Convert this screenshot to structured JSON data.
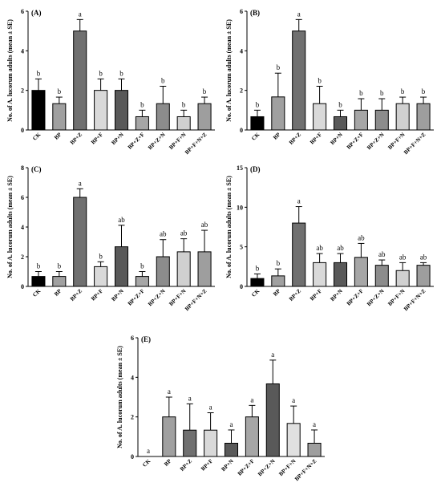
{
  "chart_data": [
    {
      "type": "bar",
      "panel_label": "(A)",
      "ylabel": "No. of A. lucorum adults (mean ± SE)",
      "ylim": [
        0,
        6
      ],
      "yticks": [
        0,
        2,
        4,
        6
      ],
      "categories": [
        "CK",
        "BP",
        "BP+Z",
        "BP+F",
        "BP+N",
        "BP+Z+F",
        "BP+Z+N",
        "BP+F+N",
        "BP+F+N+Z"
      ],
      "values": [
        2.0,
        1.33,
        5.0,
        2.0,
        2.0,
        0.67,
        1.33,
        0.67,
        1.33
      ],
      "errors": [
        0.58,
        0.33,
        0.58,
        0.58,
        0.58,
        0.33,
        0.88,
        0.33,
        0.33
      ],
      "letters": [
        "b",
        "b",
        "a",
        "b",
        "b",
        "b",
        "b",
        "b",
        "b"
      ],
      "colors": [
        "#000000",
        "#a0a0a0",
        "#707070",
        "#d9d9d9",
        "#595959",
        "#a6a6a6",
        "#8c8c8c",
        "#d0d0d0",
        "#9e9e9e"
      ]
    },
    {
      "type": "bar",
      "panel_label": "(B)",
      "ylabel": "No. of A. lucorum adults (mean ± SE)",
      "ylim": [
        0,
        6
      ],
      "yticks": [
        0,
        2,
        4,
        6
      ],
      "categories": [
        "CK",
        "BP",
        "BP+Z",
        "BP+F",
        "BP+N",
        "BP+Z+F",
        "BP+Z+N",
        "BP+F+N",
        "BP+F+N+Z"
      ],
      "values": [
        0.67,
        1.67,
        5.0,
        1.33,
        0.67,
        1.0,
        1.0,
        1.33,
        1.33
      ],
      "errors": [
        0.33,
        1.2,
        0.58,
        0.88,
        0.33,
        0.58,
        0.58,
        0.33,
        0.33
      ],
      "letters": [
        "b",
        "b",
        "a",
        "b",
        "b",
        "b",
        "b",
        "b",
        "b"
      ],
      "colors": [
        "#000000",
        "#a0a0a0",
        "#707070",
        "#d9d9d9",
        "#595959",
        "#a6a6a6",
        "#8c8c8c",
        "#d0d0d0",
        "#9e9e9e"
      ]
    },
    {
      "type": "bar",
      "panel_label": "(C)",
      "ylabel": "No. of A. lucorum adults (mean ± SE)",
      "ylim": [
        0,
        8
      ],
      "yticks": [
        0,
        2,
        4,
        6,
        8
      ],
      "categories": [
        "CK",
        "BP",
        "BP+Z",
        "BP+F",
        "BP+N",
        "BP+Z+F",
        "BP+Z+N",
        "BP+F+N",
        "BP+F+N+Z"
      ],
      "values": [
        0.67,
        0.67,
        6.0,
        1.33,
        2.67,
        0.67,
        2.0,
        2.33,
        2.33
      ],
      "errors": [
        0.33,
        0.33,
        0.58,
        0.33,
        1.45,
        0.33,
        1.15,
        0.88,
        1.45
      ],
      "letters": [
        "b",
        "b",
        "a",
        "b",
        "ab",
        "b",
        "ab",
        "ab",
        "ab"
      ],
      "colors": [
        "#000000",
        "#a0a0a0",
        "#707070",
        "#d9d9d9",
        "#595959",
        "#a6a6a6",
        "#8c8c8c",
        "#d0d0d0",
        "#9e9e9e"
      ]
    },
    {
      "type": "bar",
      "panel_label": "(D)",
      "ylabel": "No. of A. lucorum adults (mean ± SE)",
      "ylim": [
        0,
        15
      ],
      "yticks": [
        0,
        5,
        10,
        15
      ],
      "categories": [
        "CK",
        "BP",
        "BP+Z",
        "BP+F",
        "BP+N",
        "BP+Z+F",
        "BP+Z+N",
        "BP+F+N",
        "BP+F+N+Z"
      ],
      "values": [
        1.0,
        1.33,
        8.0,
        3.0,
        3.0,
        3.67,
        2.67,
        2.0,
        2.67
      ],
      "errors": [
        0.58,
        0.88,
        2.08,
        1.15,
        1.15,
        1.76,
        0.67,
        1.0,
        0.33
      ],
      "letters": [
        "b",
        "b",
        "a",
        "ab",
        "ab",
        "ab",
        "ab",
        "ab",
        "ab"
      ],
      "colors": [
        "#000000",
        "#a0a0a0",
        "#707070",
        "#d9d9d9",
        "#595959",
        "#a6a6a6",
        "#8c8c8c",
        "#d0d0d0",
        "#9e9e9e"
      ]
    },
    {
      "type": "bar",
      "panel_label": "(E)",
      "ylabel": "No. of A. lucorum adults (mean ± SE)",
      "ylim": [
        0,
        6
      ],
      "yticks": [
        0,
        2,
        4,
        6
      ],
      "categories": [
        "CK",
        "BP",
        "BP+Z",
        "BP+F",
        "BP+N",
        "BP+Z+F",
        "BP+Z+N",
        "BP+F+N",
        "BP+F+N+Z"
      ],
      "values": [
        0,
        2.0,
        1.33,
        1.33,
        0.67,
        2.0,
        3.67,
        1.67,
        0.67
      ],
      "errors": [
        0,
        1.0,
        1.33,
        0.88,
        0.67,
        0.58,
        1.2,
        0.88,
        0.67
      ],
      "letters": [
        "a",
        "a",
        "a",
        "a",
        "a",
        "a",
        "a",
        "a",
        "a"
      ],
      "colors": [
        "#000000",
        "#a0a0a0",
        "#707070",
        "#d9d9d9",
        "#595959",
        "#a6a6a6",
        "#595959",
        "#e0e0e0",
        "#9e9e9e"
      ]
    }
  ]
}
